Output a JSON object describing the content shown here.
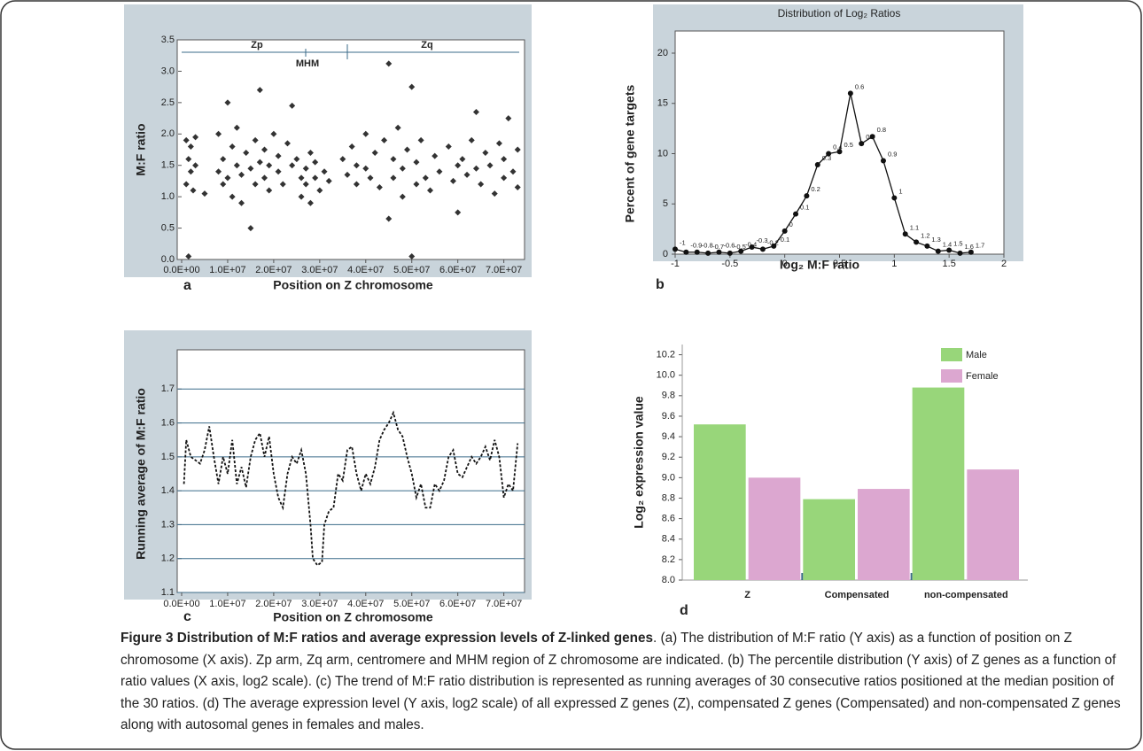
{
  "chart_data": [
    {
      "type": "scatter",
      "label": "a",
      "xlabel": "Position on Z chromosome",
      "ylabel": "M:F ratio",
      "color": "#333333",
      "annotations": [
        "Zp",
        "Zq",
        "MHM"
      ],
      "xlim": [
        0,
        74500000.0
      ],
      "ylim": [
        0,
        3.5
      ],
      "xticks": [
        {
          "value": 0,
          "label": "0.0E+00"
        },
        {
          "value": 10000000.0,
          "label": "1.0E+07"
        },
        {
          "value": 20000000.0,
          "label": "2.0E+07"
        },
        {
          "value": 30000000.0,
          "label": "3.0E+07"
        },
        {
          "value": 40000000.0,
          "label": "4.0E+07"
        },
        {
          "value": 50000000.0,
          "label": "5.0E+07"
        },
        {
          "value": 60000000.0,
          "label": "6.0E+07"
        },
        {
          "value": 70000000.0,
          "label": "7.0E+07"
        }
      ],
      "yticks": [
        {
          "value": 0,
          "label": "0.0"
        },
        0.5,
        {
          "value": 1,
          "label": "1.0"
        },
        1.5,
        {
          "value": 2,
          "label": "2.0"
        },
        2.5,
        {
          "value": 3,
          "label": "3.0"
        },
        3.5
      ],
      "x": [
        1000000.0,
        1000000.0,
        1500000.0,
        1500000.0,
        2000000.0,
        2000000.0,
        2500000.0,
        3000000.0,
        3000000.0,
        5000000.0,
        8000000.0,
        8000000.0,
        9000000.0,
        9000000.0,
        10000000.0,
        10000000.0,
        11000000.0,
        11000000.0,
        12000000.0,
        12000000.0,
        13000000.0,
        13000000.0,
        14000000.0,
        15000000.0,
        15000000.0,
        16000000.0,
        16000000.0,
        17000000.0,
        17000000.0,
        18000000.0,
        18000000.0,
        19000000.0,
        19000000.0,
        20000000.0,
        21000000.0,
        21000000.0,
        22000000.0,
        23000000.0,
        24000000.0,
        24000000.0,
        25000000.0,
        26000000.0,
        26000000.0,
        27000000.0,
        27000000.0,
        28000000.0,
        28000000.0,
        29000000.0,
        29000000.0,
        30000000.0,
        31000000.0,
        32000000.0,
        35000000.0,
        36000000.0,
        37000000.0,
        38000000.0,
        38000000.0,
        40000000.0,
        40000000.0,
        41000000.0,
        42000000.0,
        43000000.0,
        44000000.0,
        45000000.0,
        45000000.0,
        46000000.0,
        46000000.0,
        47000000.0,
        48000000.0,
        48000000.0,
        49000000.0,
        50000000.0,
        50000000.0,
        51000000.0,
        51000000.0,
        52000000.0,
        53000000.0,
        54000000.0,
        55000000.0,
        56000000.0,
        58000000.0,
        59000000.0,
        60000000.0,
        60000000.0,
        61000000.0,
        62000000.0,
        63000000.0,
        64000000.0,
        64000000.0,
        65000000.0,
        66000000.0,
        67000000.0,
        68000000.0,
        69000000.0,
        70000000.0,
        70000000.0,
        71000000.0,
        72000000.0,
        73000000.0,
        73000000.0
      ],
      "values": [
        1.9,
        1.2,
        1.6,
        0.05,
        1.4,
        1.8,
        1.1,
        1.5,
        1.95,
        1.05,
        1.4,
        2.0,
        1.2,
        1.6,
        2.5,
        1.3,
        1.8,
        1.0,
        1.5,
        2.1,
        1.35,
        0.9,
        1.7,
        0.5,
        1.45,
        1.9,
        1.2,
        2.7,
        1.55,
        1.3,
        1.75,
        1.5,
        1.1,
        2.0,
        1.4,
        1.65,
        1.2,
        1.85,
        2.45,
        1.5,
        1.6,
        1.3,
        1.0,
        1.45,
        1.2,
        1.7,
        0.9,
        1.3,
        1.55,
        1.1,
        1.4,
        1.25,
        1.6,
        1.35,
        1.8,
        1.5,
        1.2,
        2.0,
        1.45,
        1.3,
        1.7,
        1.15,
        1.9,
        3.12,
        0.65,
        1.6,
        1.3,
        2.1,
        1.45,
        1.0,
        1.75,
        2.75,
        0.05,
        1.55,
        1.2,
        1.9,
        1.3,
        1.1,
        1.65,
        1.4,
        1.8,
        1.25,
        1.5,
        0.75,
        1.6,
        1.35,
        1.9,
        1.45,
        2.35,
        1.2,
        1.7,
        1.5,
        1.05,
        1.85,
        1.3,
        1.6,
        2.25,
        1.4,
        1.75,
        1.15
      ]
    },
    {
      "type": "line",
      "label": "b",
      "title": "Distribution of Log₂ Ratios",
      "xlabel": "log₂ M:F ratio",
      "ylabel": "Percent of gene targets",
      "color": "#111111",
      "markers": true,
      "xlim": [
        -1,
        2
      ],
      "ylim": [
        0,
        20
      ],
      "xticks": [
        -1,
        -0.5,
        0,
        0.5,
        1,
        1.5,
        2
      ],
      "yticks": [
        0,
        5,
        10,
        15,
        20
      ],
      "x": [
        -1,
        -0.9,
        -0.8,
        -0.7,
        -0.6,
        -0.5,
        -0.4,
        -0.3,
        -0.2,
        -0.1,
        0,
        0.1,
        0.2,
        0.3,
        0.4,
        0.5,
        0.6,
        0.7,
        0.8,
        0.9,
        1,
        1.1,
        1.2,
        1.3,
        1.4,
        1.5,
        1.6,
        1.7
      ],
      "values": [
        0.5,
        0.2,
        0.2,
        0.1,
        0.2,
        0.1,
        0.3,
        0.7,
        0.5,
        0.8,
        2.3,
        4.0,
        5.8,
        8.9,
        10.0,
        10.2,
        16.0,
        11.0,
        11.7,
        9.3,
        5.6,
        2.0,
        1.2,
        0.8,
        0.3,
        0.4,
        0.1,
        0.2
      ]
    },
    {
      "type": "line",
      "label": "c",
      "xlabel": "Position on Z chromosome",
      "ylabel": "Running average of M:F ratio",
      "color": "#111111",
      "line_style": "dashed",
      "grid": true,
      "xlim": [
        0,
        74500000.0
      ],
      "ylim": [
        1.1,
        1.8
      ],
      "xticks": [
        {
          "value": 0,
          "label": "0.0E+00"
        },
        {
          "value": 10000000.0,
          "label": "1.0E+07"
        },
        {
          "value": 20000000.0,
          "label": "2.0E+07"
        },
        {
          "value": 30000000.0,
          "label": "3.0E+07"
        },
        {
          "value": 40000000.0,
          "label": "4.0E+07"
        },
        {
          "value": 50000000.0,
          "label": "5.0E+07"
        },
        {
          "value": 60000000.0,
          "label": "6.0E+07"
        },
        {
          "value": 70000000.0,
          "label": "7.0E+07"
        }
      ],
      "yticks": [
        1.1,
        1.2,
        1.3,
        1.4,
        1.5,
        1.6,
        1.7
      ],
      "x": [
        500000.0,
        1000000.0,
        2000000.0,
        3000000.0,
        4000000.0,
        5000000.0,
        6000000.0,
        7000000.0,
        8000000.0,
        9000000.0,
        10000000.0,
        11000000.0,
        12000000.0,
        13000000.0,
        14000000.0,
        15000000.0,
        16000000.0,
        17000000.0,
        18000000.0,
        19000000.0,
        20000000.0,
        21000000.0,
        22000000.0,
        23000000.0,
        24000000.0,
        25000000.0,
        26000000.0,
        27000000.0,
        28000000.0,
        28500000.0,
        29500000.0,
        30500000.0,
        31000000.0,
        32000000.0,
        33000000.0,
        34000000.0,
        35000000.0,
        36000000.0,
        37000000.0,
        38000000.0,
        39000000.0,
        40000000.0,
        41000000.0,
        42000000.0,
        43000000.0,
        44000000.0,
        45000000.0,
        46000000.0,
        47000000.0,
        48000000.0,
        49000000.0,
        50000000.0,
        51000000.0,
        52000000.0,
        53000000.0,
        54000000.0,
        55000000.0,
        56000000.0,
        57000000.0,
        58000000.0,
        59000000.0,
        60000000.0,
        61000000.0,
        62000000.0,
        63000000.0,
        64000000.0,
        65000000.0,
        66000000.0,
        67000000.0,
        68000000.0,
        69000000.0,
        70000000.0,
        71000000.0,
        72000000.0,
        73000000.0
      ],
      "values": [
        1.42,
        1.55,
        1.5,
        1.49,
        1.48,
        1.52,
        1.59,
        1.5,
        1.42,
        1.5,
        1.45,
        1.55,
        1.42,
        1.47,
        1.41,
        1.5,
        1.55,
        1.57,
        1.5,
        1.56,
        1.45,
        1.38,
        1.35,
        1.45,
        1.5,
        1.48,
        1.52,
        1.45,
        1.3,
        1.2,
        1.18,
        1.19,
        1.3,
        1.34,
        1.35,
        1.45,
        1.43,
        1.52,
        1.53,
        1.45,
        1.4,
        1.45,
        1.42,
        1.47,
        1.55,
        1.58,
        1.6,
        1.63,
        1.58,
        1.56,
        1.5,
        1.45,
        1.38,
        1.42,
        1.35,
        1.35,
        1.42,
        1.4,
        1.43,
        1.5,
        1.52,
        1.45,
        1.44,
        1.47,
        1.5,
        1.48,
        1.5,
        1.53,
        1.49,
        1.55,
        1.5,
        1.38,
        1.42,
        1.4,
        1.54
      ]
    },
    {
      "type": "bar",
      "label": "d",
      "ylabel": "Log₂ expression value",
      "legend": "upper right",
      "categories": [
        "Z",
        "Compensated",
        "non-compensated"
      ],
      "ylim": [
        8.0,
        10.3
      ],
      "yticks": [
        {
          "value": 8,
          "label": "8.0"
        },
        8.2,
        8.4,
        8.6,
        8.8,
        {
          "value": 9,
          "label": "9.0"
        },
        9.2,
        9.4,
        9.6,
        9.8,
        {
          "value": 10,
          "label": "10.0"
        },
        10.2
      ],
      "series": [
        {
          "name": "Male",
          "color": "#98d67a",
          "values": [
            9.52,
            8.79,
            9.88
          ]
        },
        {
          "name": "Female",
          "color": "#dca7d0",
          "values": [
            9.0,
            8.89,
            9.08
          ]
        }
      ]
    }
  ],
  "caption": {
    "title": "Figure 3 Distribution of M:F ratios and average expression levels of Z-linked genes",
    "text": ". (a) The distribution of M:F ratio (Y axis) as a function of position on Z chromosome (X axis). Zp arm, Zq arm, centromere and MHM region of Z chromosome are indicated. (b) The percentile distribution (Y axis) of Z genes as a function of ratio values (X axis, log2 scale). (c) The trend of M:F ratio distribution is represented as running averages of 30 consecutive ratios positioned at the median position of the 30 ratios. (d) The average expression level (Y axis, log2 scale) of all expressed Z genes (Z), compensated Z genes (Compensated) and non-compensated Z genes along with autosomal genes in females and males."
  }
}
